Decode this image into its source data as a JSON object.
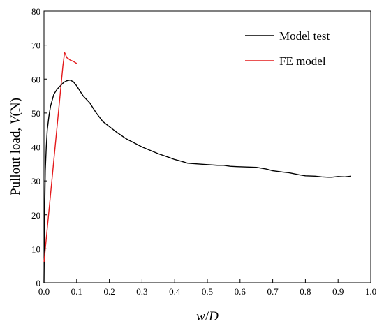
{
  "chart_data": {
    "type": "line",
    "title": "",
    "xlabel": {
      "parts": [
        {
          "text": "w",
          "italic": true
        },
        {
          "text": "/",
          "italic": false
        },
        {
          "text": "D",
          "italic": true
        }
      ]
    },
    "ylabel": {
      "parts": [
        {
          "text": "Pullout load, ",
          "italic": false
        },
        {
          "text": "V",
          "italic": true
        },
        {
          "text": "(N)",
          "italic": false
        }
      ]
    },
    "xlim": [
      0.0,
      1.0
    ],
    "ylim": [
      0,
      80
    ],
    "xticks": [
      0.0,
      0.1,
      0.2,
      0.3,
      0.4,
      0.5,
      0.6,
      0.7,
      0.8,
      0.9,
      1.0
    ],
    "xtick_labels": [
      "0.0",
      "0.1",
      "0.2",
      "0.3",
      "0.4",
      "0.5",
      "0.6",
      "0.7",
      "0.8",
      "0.9",
      "1.0"
    ],
    "yticks": [
      0,
      10,
      20,
      30,
      40,
      50,
      60,
      70,
      80
    ],
    "ytick_labels": [
      "0",
      "10",
      "20",
      "30",
      "40",
      "50",
      "60",
      "70",
      "80"
    ],
    "grid": false,
    "legend_position": "top-right",
    "series": [
      {
        "name": "Model test",
        "color": "#000000",
        "x": [
          0.0,
          0.002,
          0.004,
          0.007,
          0.01,
          0.015,
          0.02,
          0.03,
          0.04,
          0.05,
          0.06,
          0.07,
          0.08,
          0.09,
          0.1,
          0.11,
          0.12,
          0.13,
          0.14,
          0.15,
          0.16,
          0.18,
          0.2,
          0.22,
          0.25,
          0.28,
          0.3,
          0.33,
          0.35,
          0.38,
          0.4,
          0.42,
          0.44,
          0.47,
          0.5,
          0.53,
          0.55,
          0.57,
          0.59,
          0.62,
          0.65,
          0.68,
          0.7,
          0.73,
          0.75,
          0.78,
          0.8,
          0.83,
          0.85,
          0.87,
          0.88,
          0.9,
          0.92,
          0.94
        ],
        "y": [
          0.0,
          20.0,
          33.0,
          40.0,
          45.0,
          49.0,
          52.0,
          55.5,
          57.0,
          58.0,
          59.0,
          59.5,
          59.7,
          59.2,
          58.0,
          56.5,
          55.0,
          54.0,
          53.0,
          51.5,
          50.0,
          47.5,
          46.0,
          44.5,
          42.5,
          41.0,
          40.0,
          38.8,
          38.0,
          37.0,
          36.3,
          35.8,
          35.2,
          35.0,
          34.8,
          34.6,
          34.6,
          34.3,
          34.2,
          34.1,
          34.0,
          33.5,
          33.0,
          32.6,
          32.4,
          31.8,
          31.5,
          31.4,
          31.2,
          31.1,
          31.1,
          31.3,
          31.2,
          31.4
        ]
      },
      {
        "name": "FE model",
        "color": "#e41a1c",
        "x": [
          0.0,
          0.01,
          0.02,
          0.03,
          0.04,
          0.05,
          0.058,
          0.063,
          0.066,
          0.07,
          0.075,
          0.08,
          0.09,
          0.1
        ],
        "y": [
          6.0,
          16.0,
          26.0,
          36.0,
          46.0,
          56.0,
          64.0,
          67.8,
          67.2,
          66.3,
          66.0,
          65.6,
          65.2,
          64.6
        ]
      }
    ]
  }
}
